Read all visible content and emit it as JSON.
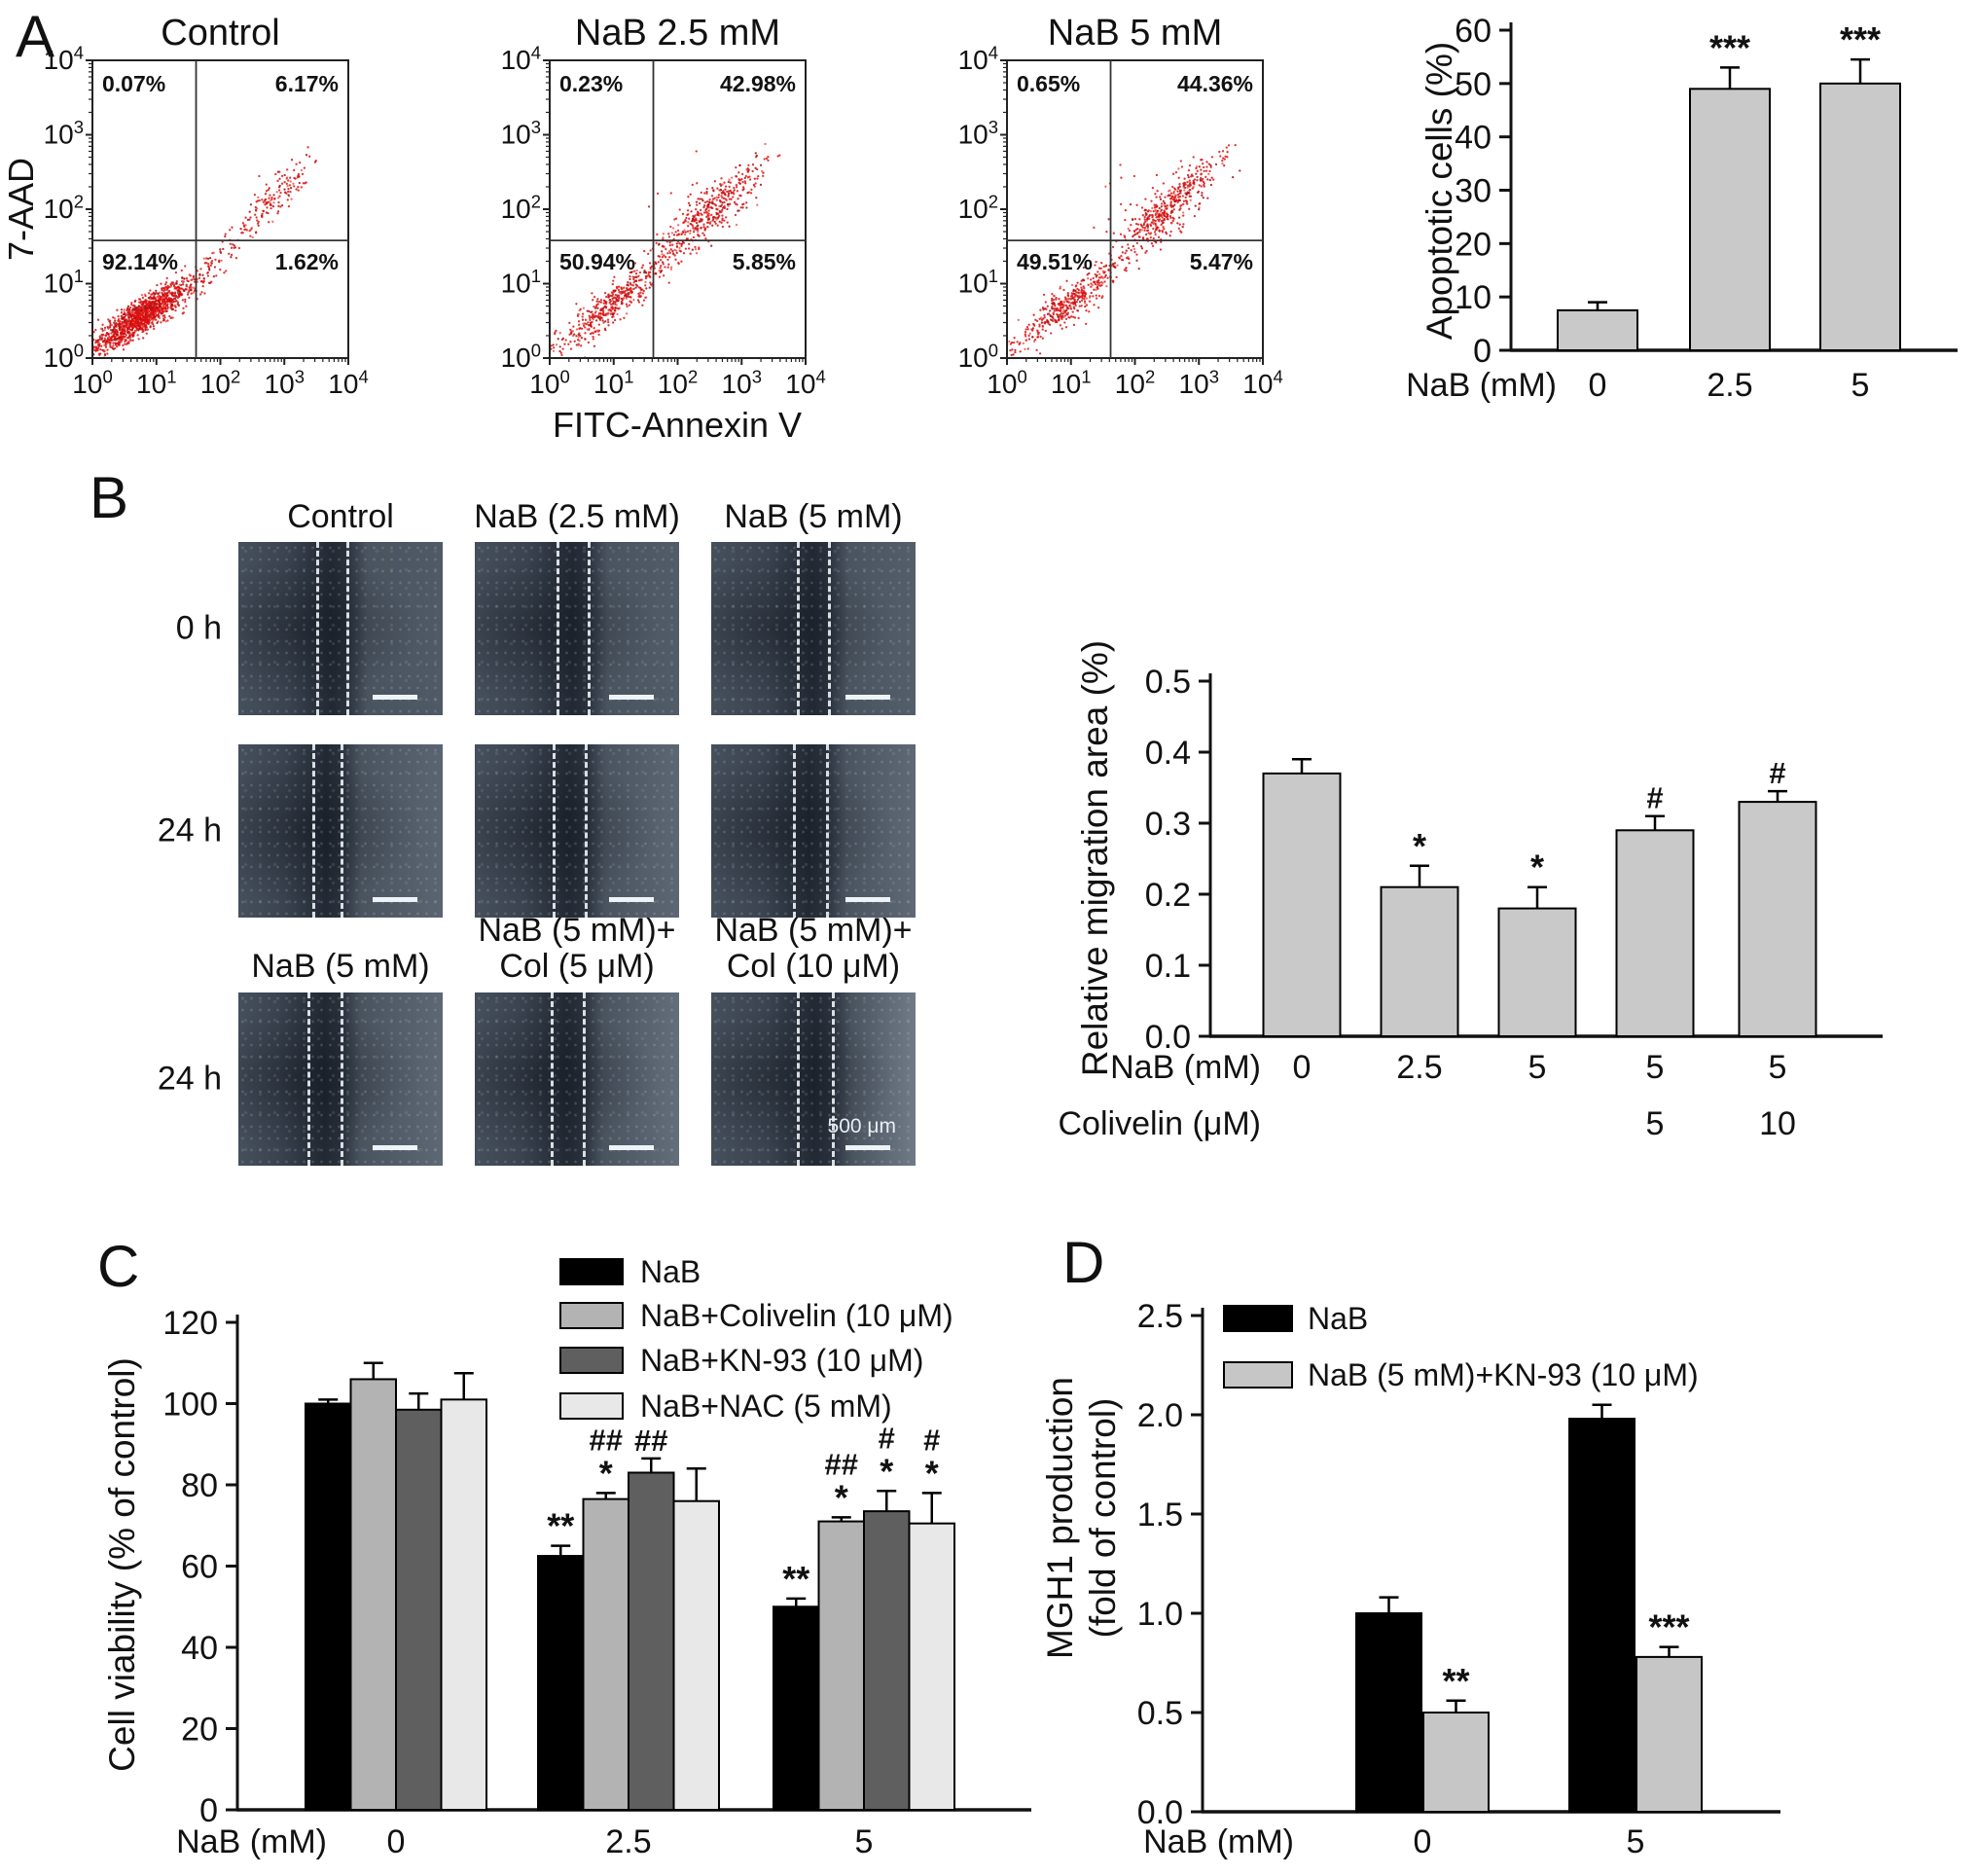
{
  "panelA": {
    "label": "A",
    "ylabel": "7-AAD",
    "xlabel": "FITC-Annexin V",
    "tick_exponents": [
      0,
      1,
      2,
      3,
      4
    ],
    "dot_color": "#dd1111",
    "plots": [
      {
        "title": "Control",
        "ul": "0.07%",
        "ur": "6.17%",
        "ll": "92.14%",
        "lr": "1.62%"
      },
      {
        "title": "NaB 2.5 mM",
        "ul": "0.23%",
        "ur": "42.98%",
        "ll": "50.94%",
        "lr": "5.85%"
      },
      {
        "title": "NaB 5 mM",
        "ul": "0.65%",
        "ur": "44.36%",
        "ll": "49.51%",
        "lr": "5.47%"
      }
    ]
  },
  "panelB": {
    "label": "B",
    "col_headers": [
      "Control",
      "NaB (2.5 mM)",
      "NaB (5 mM)"
    ],
    "row_labels": [
      "0 h",
      "24 h",
      "24 h"
    ],
    "row3_headers": [
      [
        "NaB (5 mM)"
      ],
      [
        "NaB (5 mM)+",
        "Col (5 μM)"
      ],
      [
        "NaB (5 mM)+",
        "Col (10 μM)"
      ]
    ],
    "scale_text": "500 μm"
  },
  "panelC": {
    "label": "C"
  },
  "panelD": {
    "label": "D"
  },
  "chart_data": [
    {
      "id": "apoptosis",
      "panel": "A",
      "type": "bar",
      "title": "",
      "ylabel": "Apoptotic cells (%)",
      "ylim": [
        0,
        60
      ],
      "ytick_step": 10,
      "ytick_decimals": 0,
      "xaxis_rows": [
        {
          "label": "NaB (mM)",
          "values": [
            "0",
            "2.5",
            "5"
          ]
        }
      ],
      "values": [
        7.5,
        49,
        50
      ],
      "errors": [
        1.5,
        4,
        4.5
      ],
      "annotations": [
        [],
        [
          "***"
        ],
        [
          "***"
        ]
      ],
      "bar_color": "#c9c9c9",
      "legend_position": "none",
      "grid": false
    },
    {
      "id": "migration",
      "panel": "B",
      "type": "bar",
      "title": "",
      "ylabel": "Relative migration area (%)",
      "ylim": [
        0,
        0.5
      ],
      "ytick_step": 0.1,
      "ytick_decimals": 1,
      "xaxis_rows": [
        {
          "label": "NaB (mM)",
          "values": [
            "0",
            "2.5",
            "5",
            "5",
            "5"
          ]
        },
        {
          "label": "Colivelin (μM)",
          "values": [
            "",
            "",
            "",
            "5",
            "10"
          ]
        }
      ],
      "values": [
        0.37,
        0.21,
        0.18,
        0.29,
        0.33
      ],
      "errors": [
        0.02,
        0.03,
        0.03,
        0.02,
        0.015
      ],
      "annotations": [
        [],
        [
          "*"
        ],
        [
          "*"
        ],
        [
          "#"
        ],
        [
          "#"
        ]
      ],
      "bar_color": "#c9c9c9",
      "legend_position": "none",
      "grid": false
    },
    {
      "id": "viability",
      "panel": "C",
      "type": "grouped-bar",
      "title": "",
      "ylabel": "Cell viability (% of control)",
      "ylim": [
        0,
        120
      ],
      "ytick_step": 20,
      "ytick_decimals": 0,
      "categories": [
        "0",
        "2.5",
        "5"
      ],
      "xaxis_rows": [
        {
          "label": "NaB (mM)",
          "values": [
            "0",
            "2.5",
            "5"
          ]
        }
      ],
      "series": [
        {
          "name": "NaB",
          "color": "#000000",
          "values": [
            100,
            62.5,
            50
          ],
          "errors": [
            1,
            2.5,
            2
          ],
          "annotations": [
            [],
            [
              "**"
            ],
            [
              "**"
            ]
          ]
        },
        {
          "name": "NaB+Colivelin (10 μM)",
          "color": "#b3b3b3",
          "values": [
            106,
            76.5,
            71
          ],
          "errors": [
            4,
            1.5,
            1
          ],
          "annotations": [
            [],
            [
              "*",
              "##"
            ],
            [
              "*",
              "##"
            ]
          ]
        },
        {
          "name": "NaB+KN-93 (10 μM)",
          "color": "#5f5f5f",
          "values": [
            98.5,
            83,
            73.5
          ],
          "errors": [
            4,
            3.5,
            5
          ],
          "annotations": [
            [],
            [
              "##"
            ],
            [
              "*",
              "#"
            ]
          ]
        },
        {
          "name": "NaB+NAC (5 mM)",
          "color": "#e8e8e8",
          "values": [
            101,
            76,
            70.5
          ],
          "errors": [
            6.5,
            8,
            7.5
          ],
          "annotations": [
            [],
            [],
            [
              "*",
              "#"
            ]
          ]
        }
      ],
      "legend_position": "upper-right",
      "grid": false
    },
    {
      "id": "mgh1",
      "panel": "D",
      "type": "grouped-bar",
      "title": "",
      "ylabel_lines": [
        "MGH1 production",
        "(fold of control)"
      ],
      "ylim": [
        0,
        2.5
      ],
      "ytick_step": 0.5,
      "ytick_decimals": 1,
      "categories": [
        "0",
        "5"
      ],
      "xaxis_rows": [
        {
          "label": "NaB (mM)",
          "values": [
            "0",
            "5"
          ]
        }
      ],
      "series": [
        {
          "name": "NaB",
          "color": "#000000",
          "values": [
            1.0,
            1.98
          ],
          "errors": [
            0.08,
            0.07
          ],
          "annotations": [
            [],
            []
          ]
        },
        {
          "name": "NaB (5 mM)+KN-93 (10 μM)",
          "color": "#c6c6c6",
          "values": [
            0.5,
            0.78
          ],
          "errors": [
            0.06,
            0.05
          ],
          "annotations": [
            [
              "**"
            ],
            [
              "***"
            ]
          ]
        }
      ],
      "legend_position": "upper-left",
      "grid": false
    }
  ]
}
